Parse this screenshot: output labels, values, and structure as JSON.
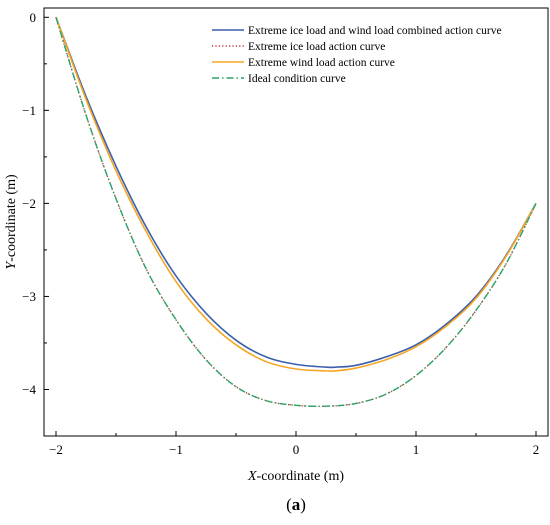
{
  "chart_data": {
    "type": "line",
    "xlabel_prefix": "X",
    "xlabel_suffix": "-coordinate (m)",
    "ylabel_prefix": "Y",
    "ylabel_suffix": "-coordinate (m)",
    "xlim": [
      -2.1,
      2.1
    ],
    "ylim": [
      -4.5,
      0.1
    ],
    "xticks": [
      -2,
      -1,
      0,
      1,
      2
    ],
    "xtick_labels": [
      "−2",
      "−1",
      "0",
      "1",
      "2"
    ],
    "yticks": [
      0,
      -1,
      -2,
      -3,
      -4
    ],
    "ytick_labels": [
      "0",
      "−1",
      "−2",
      "−3",
      "−4"
    ],
    "grid": false,
    "legend_position": "top-right",
    "series": [
      {
        "name": "Extreme ice load and wind load combined action curve",
        "color": "#3a5fad",
        "style": "solid",
        "x": [
          -2.0,
          -1.75,
          -1.5,
          -1.25,
          -1.0,
          -0.75,
          -0.5,
          -0.25,
          0.0,
          0.25,
          0.33,
          0.5,
          0.75,
          1.0,
          1.25,
          1.5,
          1.75,
          2.0
        ],
        "y": [
          0.0,
          -0.85,
          -1.6,
          -2.25,
          -2.78,
          -3.18,
          -3.47,
          -3.65,
          -3.73,
          -3.76,
          -3.76,
          -3.74,
          -3.65,
          -3.52,
          -3.3,
          -3.0,
          -2.56,
          -2.0
        ]
      },
      {
        "name": "Extreme ice load action curve",
        "color": "#c0392b",
        "style": "dotted",
        "x": [
          -2.0,
          -1.75,
          -1.5,
          -1.25,
          -1.0,
          -0.75,
          -0.5,
          -0.25,
          0.0,
          0.25,
          0.5,
          0.75,
          1.0,
          1.25,
          1.5,
          1.75,
          2.0
        ],
        "y": [
          0.0,
          -1.05,
          -1.95,
          -2.7,
          -3.25,
          -3.68,
          -3.97,
          -4.12,
          -4.17,
          -4.18,
          -4.15,
          -4.05,
          -3.85,
          -3.55,
          -3.15,
          -2.65,
          -2.0
        ]
      },
      {
        "name": "Extreme wind load action curve",
        "color": "#f5a623",
        "style": "solid",
        "x": [
          -2.0,
          -1.75,
          -1.5,
          -1.25,
          -1.0,
          -0.75,
          -0.5,
          -0.25,
          0.0,
          0.25,
          0.33,
          0.5,
          0.75,
          1.0,
          1.25,
          1.5,
          1.75,
          2.0
        ],
        "y": [
          0.0,
          -0.88,
          -1.65,
          -2.3,
          -2.84,
          -3.24,
          -3.52,
          -3.7,
          -3.78,
          -3.8,
          -3.8,
          -3.77,
          -3.68,
          -3.54,
          -3.32,
          -3.02,
          -2.57,
          -2.0
        ]
      },
      {
        "name": "Ideal condition curve",
        "color": "#27a66b",
        "style": "dashdot",
        "x": [
          -2.0,
          -1.75,
          -1.5,
          -1.25,
          -1.0,
          -0.75,
          -0.5,
          -0.25,
          0.0,
          0.25,
          0.5,
          0.75,
          1.0,
          1.25,
          1.5,
          1.75,
          2.0
        ],
        "y": [
          0.0,
          -1.05,
          -1.95,
          -2.7,
          -3.25,
          -3.68,
          -3.97,
          -4.12,
          -4.17,
          -4.18,
          -4.15,
          -4.05,
          -3.85,
          -3.55,
          -3.15,
          -2.65,
          -2.0
        ]
      }
    ]
  },
  "caption": {
    "open": "(",
    "letter": "a",
    "close": ")"
  }
}
